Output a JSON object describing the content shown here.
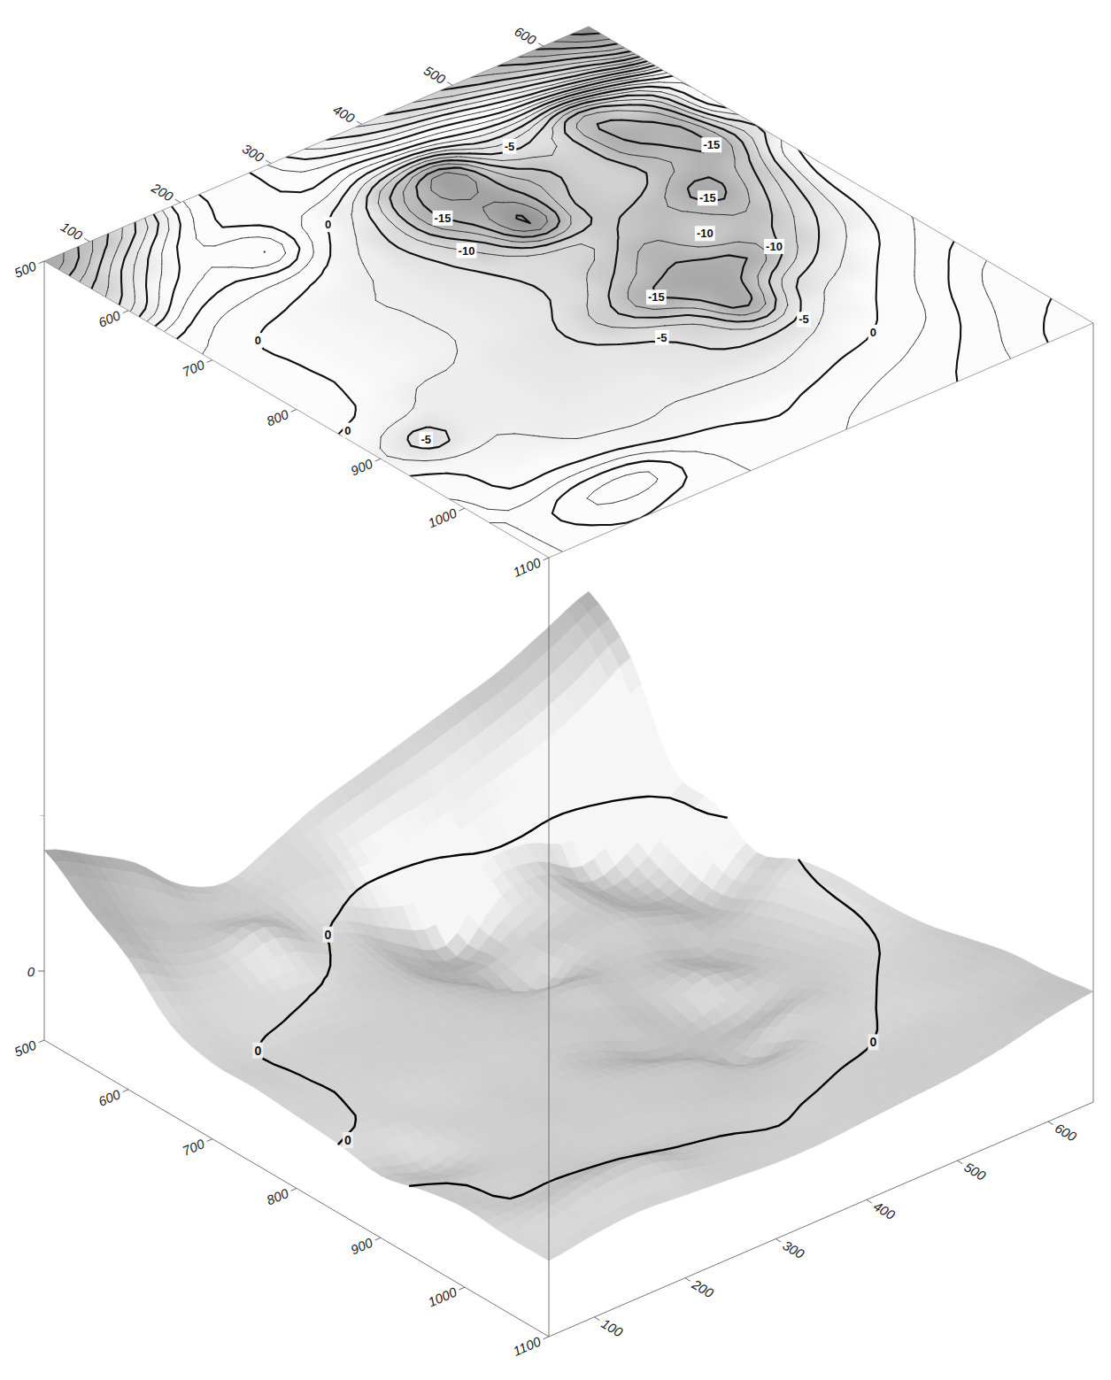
{
  "chart_data": {
    "type": "contour_surface",
    "x": [
      500,
      550,
      600,
      650,
      700,
      750,
      800,
      850,
      900,
      950,
      1000,
      1050,
      1100
    ],
    "y": [
      50,
      100,
      150,
      200,
      250,
      300,
      350,
      400,
      450,
      500,
      550,
      600,
      650
    ],
    "z": [
      [
        35,
        28,
        20,
        8,
        3,
        8,
        14,
        18,
        22,
        26,
        30,
        36,
        42
      ],
      [
        26,
        18,
        10,
        5,
        4,
        5,
        3,
        5,
        8,
        12,
        16,
        22,
        30
      ],
      [
        18,
        10,
        7,
        10,
        2,
        -3,
        -12,
        -18,
        -5,
        -5,
        -12,
        -5,
        5
      ],
      [
        6,
        3,
        2,
        1,
        -2,
        -6,
        -15,
        -17,
        -12,
        -8,
        -15,
        -14,
        2
      ],
      [
        2,
        0,
        -1,
        -2,
        -3,
        -5,
        -10,
        -20,
        -10,
        -8,
        -12,
        -15,
        -5
      ],
      [
        2,
        0,
        -1,
        -2,
        -3,
        -4,
        -6,
        -7,
        -10,
        -12,
        -16,
        -10,
        0
      ],
      [
        1,
        0,
        -1,
        -2,
        -3,
        -4,
        -6,
        -10,
        -14,
        -10,
        -12,
        -6,
        2
      ],
      [
        0,
        -1,
        -3,
        -3,
        -4,
        -5,
        -9,
        -15,
        -16,
        -15,
        -8,
        -3,
        2
      ],
      [
        -2,
        -6,
        -3,
        -3,
        -4,
        -4,
        -5,
        -8,
        -16,
        -6,
        -3,
        0,
        3
      ],
      [
        1,
        -1,
        -2,
        -3,
        -3,
        -3,
        -4,
        -5,
        -5,
        -2,
        0,
        3,
        6
      ],
      [
        3,
        0,
        0,
        -1,
        -2,
        -2,
        -2,
        -2,
        -1,
        0,
        2,
        6,
        9
      ],
      [
        2,
        5,
        8,
        8,
        3,
        1,
        0,
        1,
        2,
        3,
        5,
        8,
        10
      ],
      [
        2,
        4,
        5,
        4,
        3,
        2,
        2,
        3,
        4,
        5,
        7,
        10,
        12
      ]
    ],
    "xlim": [
      500,
      1100
    ],
    "ylim": [
      50,
      650
    ],
    "zlim": [
      -20,
      45
    ],
    "xticks": [
      500,
      600,
      700,
      800,
      900,
      1000,
      1100
    ],
    "yticks": [
      100,
      200,
      300,
      400,
      500,
      600
    ],
    "zticks": [
      0
    ],
    "levels": [
      -20,
      -17.5,
      -15,
      -12.5,
      -10,
      -7.5,
      -5,
      -2.5,
      0,
      2.5,
      5,
      7.5,
      10,
      12.5,
      15,
      17.5,
      20,
      22.5,
      25,
      27.5,
      30,
      32.5,
      35,
      37.5,
      40,
      42.5
    ],
    "contour_labels": [
      {
        "value": -15,
        "x": 650,
        "y": 350
      },
      {
        "value": -15,
        "x": 700,
        "y": 600
      },
      {
        "value": -15,
        "x": 850,
        "y": 400
      },
      {
        "value": -15,
        "x": 760,
        "y": 540
      },
      {
        "value": -10,
        "x": 700,
        "y": 330
      },
      {
        "value": -10,
        "x": 800,
        "y": 500
      },
      {
        "value": -10,
        "x": 850,
        "y": 530
      },
      {
        "value": -5,
        "x": 600,
        "y": 470
      },
      {
        "value": -5,
        "x": 900,
        "y": 360
      },
      {
        "value": -5,
        "x": 950,
        "y": 470
      },
      {
        "value": -5,
        "x": 900,
        "y": 100
      },
      {
        "value": 0,
        "x": 600,
        "y": 270
      },
      {
        "value": 0,
        "x": 850,
        "y": 60
      },
      {
        "value": 0,
        "x": 1000,
        "y": 500
      },
      {
        "value": 0,
        "x": 700,
        "y": 100
      }
    ],
    "surface_contour": 0,
    "surface_labels": [
      {
        "value": 0,
        "x": 600,
        "y": 270
      },
      {
        "value": 0,
        "x": 700,
        "y": 100
      },
      {
        "value": 0,
        "x": 1000,
        "y": 500
      },
      {
        "value": 0,
        "x": 850,
        "y": 60
      }
    ]
  }
}
